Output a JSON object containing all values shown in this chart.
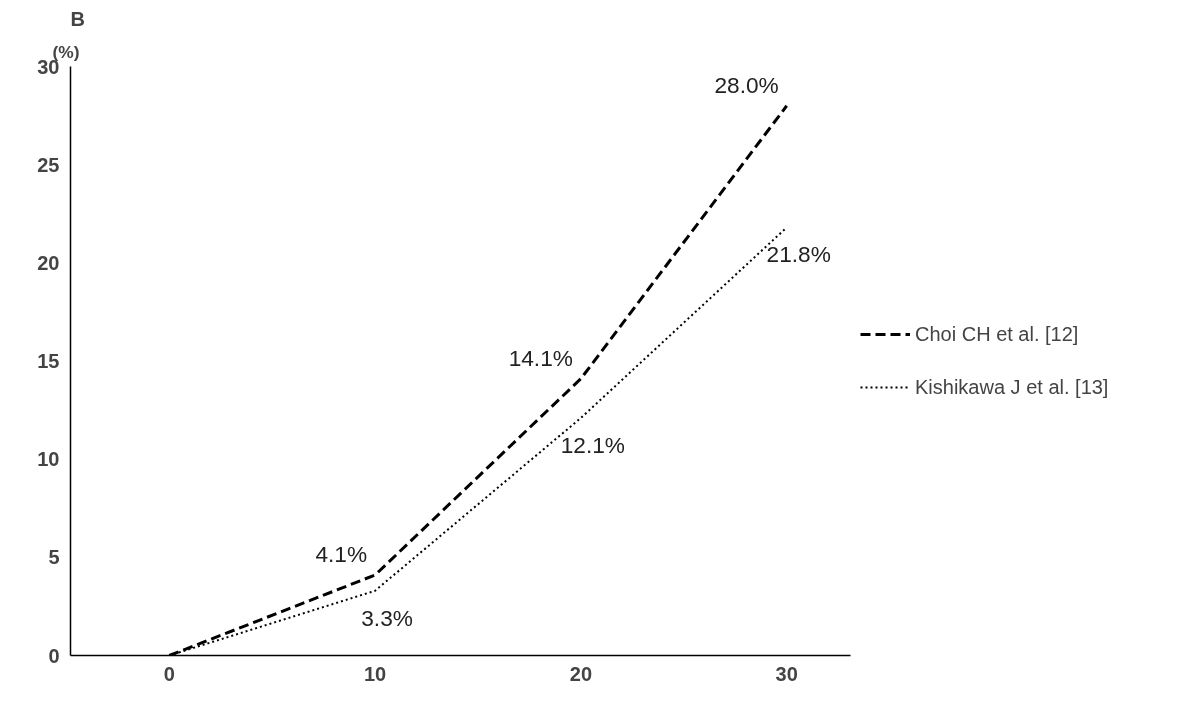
{
  "chart_data": {
    "type": "line",
    "title": "B",
    "ylabel": "(%)",
    "categories": [
      "0",
      "10",
      "20",
      "30"
    ],
    "series": [
      {
        "name": "Choi CH et al. [12]",
        "color": "#000000",
        "line_style": "dashed",
        "values": [
          0,
          4.1,
          14.1,
          28.0
        ],
        "value_labels": [
          null,
          "4.1%",
          "14.1%",
          "28.0%"
        ]
      },
      {
        "name": "Kishikawa J et al. [13]",
        "color": "#000000",
        "line_style": "dotted",
        "values": [
          0,
          3.3,
          12.1,
          21.8
        ],
        "value_labels": [
          null,
          "3.3%",
          "12.1%",
          "21.8%"
        ]
      }
    ],
    "ylim": [
      0,
      30
    ],
    "yticks": [
      0,
      5,
      10,
      15,
      20,
      25,
      30
    ],
    "grid": false,
    "legend": "right",
    "marker": "none"
  }
}
